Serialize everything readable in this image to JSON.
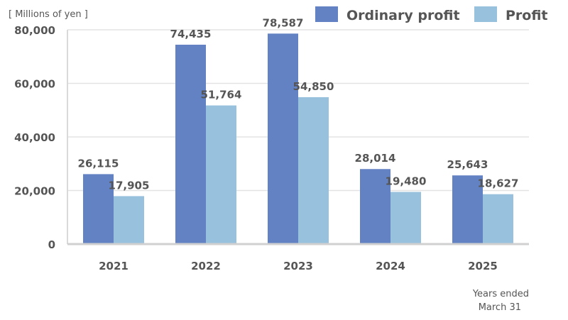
{
  "chart_data": {
    "type": "bar",
    "unit_label": "[ Millions of yen ]",
    "categories": [
      "2021",
      "2022",
      "2023",
      "2024",
      "2025"
    ],
    "series": [
      {
        "name": "Ordinary profit",
        "values": [
          26115,
          74435,
          78587,
          28014,
          25643
        ],
        "labels": [
          "26,115",
          "74,435",
          "78,587",
          "28,014",
          "25,643"
        ],
        "color": "#6382c4"
      },
      {
        "name": "Profit",
        "values": [
          17905,
          51764,
          54850,
          19480,
          18627
        ],
        "labels": [
          "17,905",
          "51,764",
          "54,850",
          "19,480",
          "18,627"
        ],
        "color": "#98c1dd"
      }
    ],
    "y_ticks": [
      0,
      20000,
      40000,
      60000,
      80000
    ],
    "y_tick_labels": [
      "0",
      "20,000",
      "40,000",
      "60,000",
      "80,000"
    ],
    "ylim": [
      0,
      80000
    ],
    "grid": true,
    "legend_position": "top-right",
    "footnote_line1": "Years ended",
    "footnote_line2": "March 31"
  }
}
